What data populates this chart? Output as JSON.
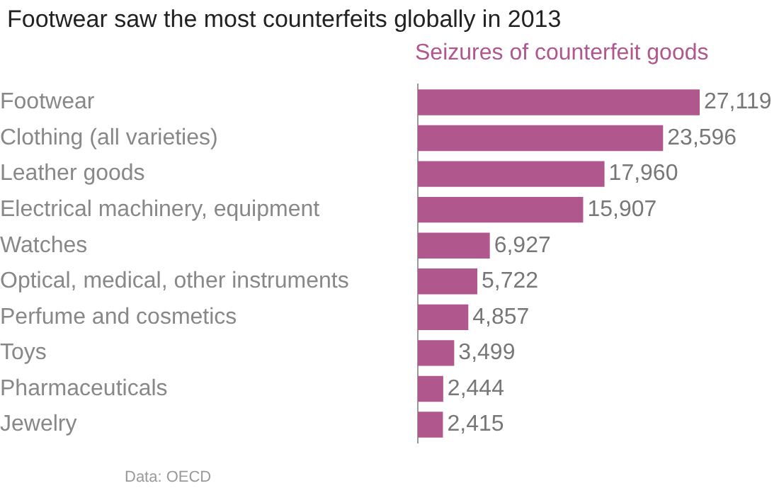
{
  "chart_data": {
    "type": "bar",
    "orientation": "horizontal",
    "title": "Footwear saw the most counterfeits globally in 2013",
    "subtitle": "Seizures of counterfeit goods",
    "categories": [
      "Footwear",
      "Clothing (all varieties)",
      "Leather goods",
      "Electrical machinery, equipment",
      "Watches",
      "Optical, medical, other instruments",
      "Perfume and cosmetics",
      "Toys",
      "Pharmaceuticals",
      "Jewelry"
    ],
    "values": [
      27119,
      23596,
      17960,
      15907,
      6927,
      5722,
      4857,
      3499,
      2444,
      2415
    ],
    "value_labels": [
      "27,119",
      "23,596",
      "17,960",
      "15,907",
      "6,927",
      "5,722",
      "4,857",
      "3,499",
      "2,444",
      "2,415"
    ],
    "color": "#b0578d",
    "grid": false,
    "legend": false,
    "annotations": [
      "Data: OECD"
    ]
  }
}
